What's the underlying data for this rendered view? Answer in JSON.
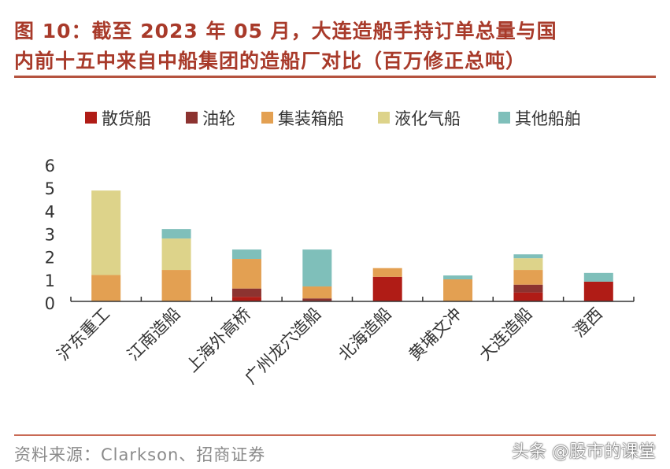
{
  "title_line1": "图 10：截至 2023 年 05 月，大连造船手持订单总量与国",
  "title_line2": "内前十五中来自中船集团的造船厂对比（百万修正总吨）",
  "source": "资料来源：Clarkson、招商证券",
  "watermark": "头条 @股市的课堂",
  "chart_data": {
    "type": "bar",
    "stacked": true,
    "categories": [
      "沪东重工",
      "江南造船",
      "上海外高桥",
      "广州龙穴造船",
      "北海造船",
      "黄埔文冲",
      "大连造船",
      "澄西"
    ],
    "series": [
      {
        "name": "散货船",
        "color": "#b01c16",
        "values": [
          0,
          0,
          0.2,
          0.03,
          1.07,
          0,
          0.39,
          0.86
        ]
      },
      {
        "name": "油轮",
        "color": "#8c3330",
        "values": [
          0,
          0,
          0.36,
          0.1,
          0,
          0,
          0.34,
          0
        ]
      },
      {
        "name": "集装箱船",
        "color": "#e3a052",
        "values": [
          1.15,
          1.37,
          1.29,
          0.52,
          0.38,
          0.96,
          0.64,
          0
        ]
      },
      {
        "name": "液化气船",
        "color": "#ddd38a",
        "values": [
          3.68,
          1.37,
          0,
          0,
          0,
          0,
          0.51,
          0
        ]
      },
      {
        "name": "其他船舶",
        "color": "#7fbfba",
        "values": [
          0,
          0.41,
          0.41,
          1.61,
          0,
          0.17,
          0.17,
          0.38
        ]
      }
    ],
    "ylim": [
      0,
      6
    ],
    "yticks": [
      0,
      1,
      2,
      3,
      4,
      5,
      6
    ],
    "grid": false,
    "legend": "top"
  }
}
